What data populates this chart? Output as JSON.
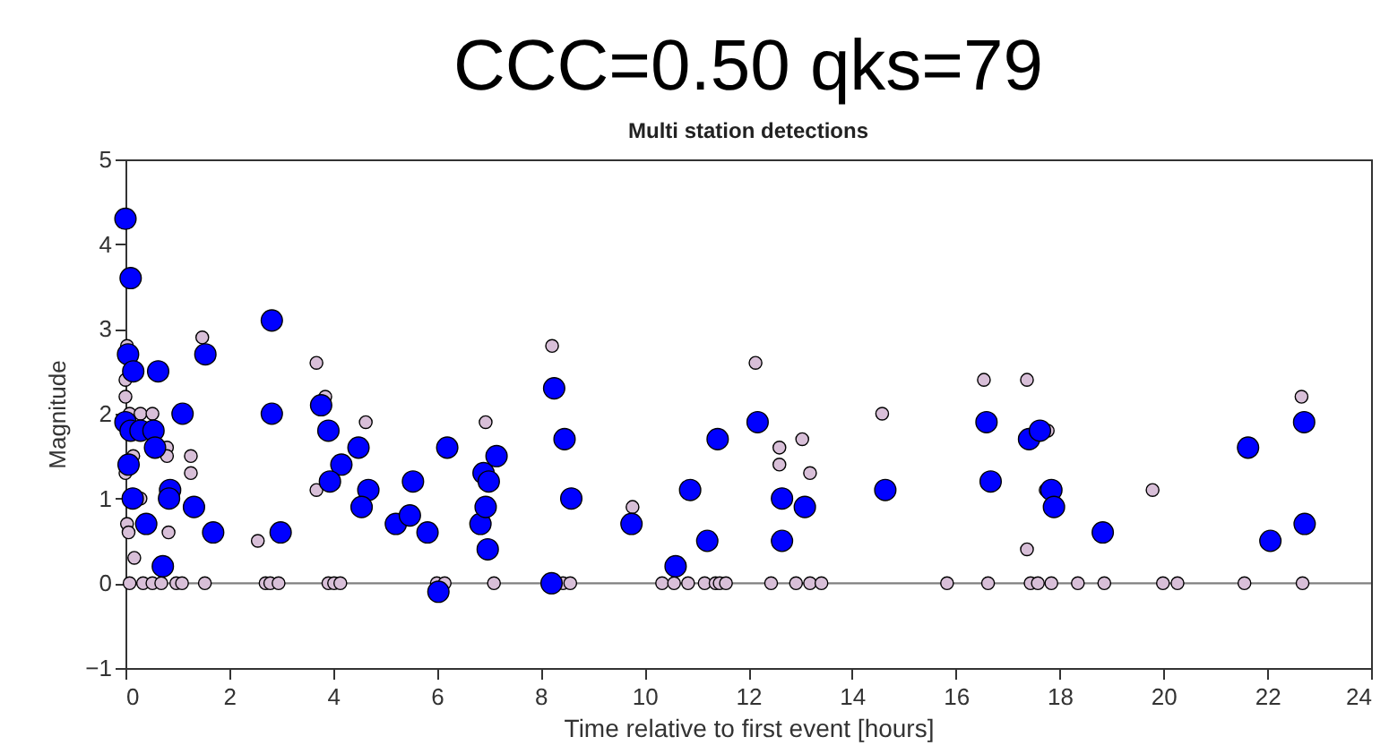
{
  "chart_data": {
    "type": "scatter",
    "title": "CCC=0.50  qks=79",
    "subtitle": "Multi station detections",
    "xlabel": "Time relative to first event [hours]",
    "ylabel": "Magnitude",
    "xlim": [
      0,
      24
    ],
    "xticks": [
      0,
      2,
      4,
      6,
      8,
      10,
      12,
      14,
      16,
      18,
      20,
      22,
      24
    ],
    "ylim": [
      -1,
      5
    ],
    "yticks": [
      -1,
      0,
      1,
      2,
      3,
      4,
      5
    ],
    "grid": false,
    "marker": "circle",
    "ref_lines": [
      {
        "axis": "y",
        "value": 0,
        "color": "#808080"
      }
    ],
    "series": [
      {
        "color": "#d8bfd8",
        "x": [
          0.03,
          0,
          0,
          0.08,
          0.29,
          0.52,
          0.15,
          0,
          0.8,
          0.8,
          0.29,
          0.03,
          0.06,
          0.17,
          0.83,
          1.26,
          1.26,
          1.48,
          2.55,
          3.68,
          3.85,
          3.68,
          4.63,
          6.94,
          0.08,
          0.34,
          0.52,
          0.69,
          0.98,
          1.09,
          1.53,
          2.7,
          2.79,
          2.95,
          3.91,
          4.02,
          4.14,
          6.0,
          6.15,
          7.1,
          8.22,
          9.77,
          12.14,
          12.6,
          12.6,
          13.04,
          13.19,
          14.58,
          8.43,
          8.57,
          10.34,
          10.57,
          10.84,
          11.16,
          11.37,
          11.45,
          11.57,
          12.44,
          12.92,
          13.19,
          13.41,
          15.83,
          16.54,
          17.37,
          17.77,
          17.73,
          17.37,
          19.79,
          22.66,
          16.62,
          17.44,
          17.58,
          17.84,
          18.35,
          18.86,
          19.99,
          20.27,
          21.56,
          22.68
        ],
        "values": [
          2.8,
          2.4,
          2.2,
          2.0,
          2.0,
          2.0,
          1.5,
          1.3,
          1.6,
          1.5,
          1.0,
          0.7,
          0.6,
          0.3,
          0.6,
          1.5,
          1.3,
          2.9,
          0.5,
          2.6,
          2.2,
          1.1,
          1.9,
          1.9,
          0,
          0,
          0,
          0,
          0,
          0,
          0,
          0,
          0,
          0,
          0,
          0,
          0,
          0,
          0,
          0,
          2.8,
          0.9,
          2.6,
          1.6,
          1.4,
          1.7,
          1.3,
          2.0,
          0,
          0,
          0,
          0,
          0,
          0,
          0,
          0,
          0,
          0,
          0,
          0,
          0,
          0,
          2.4,
          2.4,
          1.8,
          1.1,
          0.4,
          1.1,
          2.2,
          0,
          0,
          0,
          0,
          0,
          0,
          0,
          0,
          0,
          0
        ]
      },
      {
        "color": "#0000ff",
        "x": [
          0,
          0.1,
          0.05,
          0.15,
          0.63,
          0,
          0.1,
          0.29,
          0.54,
          0.57,
          0.06,
          0.14,
          0.4,
          0.72,
          0.86,
          0.84,
          1.1,
          1.32,
          1.54,
          1.69,
          2.82,
          2.82,
          2.99,
          3.77,
          3.91,
          4.16,
          3.94,
          4.49,
          4.68,
          4.55,
          5.21,
          5.48,
          5.54,
          5.82,
          6.03,
          6.2,
          6.84,
          6.94,
          6.9,
          7.0,
          6.98,
          7.15,
          8.21,
          8.26,
          8.46,
          8.59,
          9.75,
          10.6,
          10.88,
          11.21,
          11.41,
          12.18,
          12.65,
          13.09,
          12.65,
          14.64,
          16.59,
          16.67,
          17.41,
          17.62,
          17.84,
          17.89,
          18.83,
          21.63,
          22.06,
          22.71,
          22.72
        ],
        "values": [
          4.3,
          3.6,
          2.7,
          2.5,
          2.5,
          1.9,
          1.8,
          1.8,
          1.8,
          1.6,
          1.4,
          1.0,
          0.7,
          0.2,
          1.1,
          1.0,
          2.0,
          0.9,
          2.7,
          0.6,
          3.1,
          2.0,
          0.6,
          2.1,
          1.8,
          1.4,
          1.2,
          1.6,
          1.1,
          0.9,
          0.7,
          0.8,
          1.2,
          0.6,
          -0.1,
          1.6,
          0.7,
          0.9,
          1.3,
          1.2,
          0.4,
          1.5,
          0,
          2.3,
          1.7,
          1.0,
          0.7,
          0.2,
          1.1,
          0.5,
          1.7,
          1.9,
          1.0,
          0.9,
          0.5,
          1.1,
          1.9,
          1.2,
          1.7,
          1.8,
          1.1,
          0.9,
          0.6,
          1.6,
          0.5,
          1.9,
          0.7
        ]
      }
    ]
  }
}
